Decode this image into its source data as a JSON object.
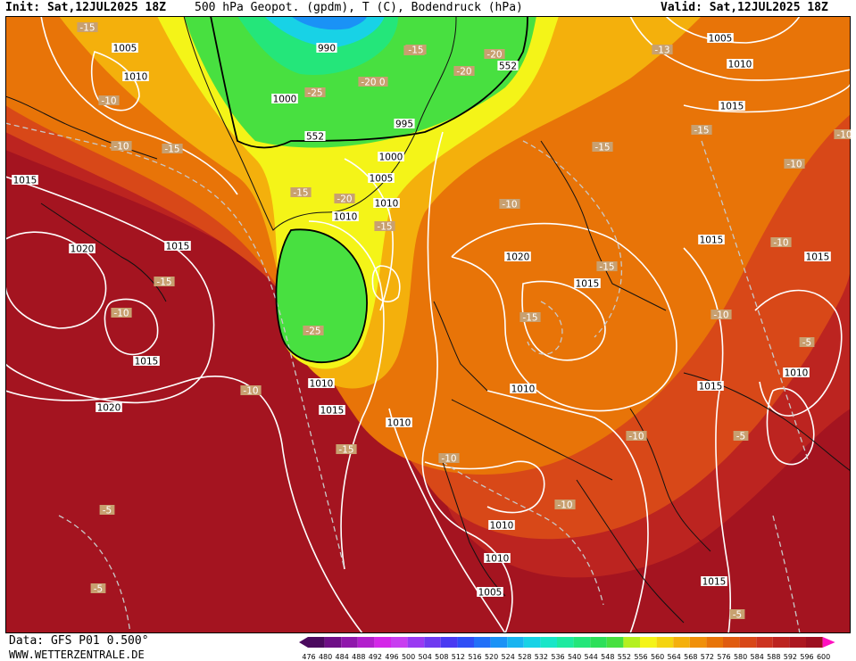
{
  "header": {
    "init": "Init: Sat,12JUL2025 18Z",
    "title": "500 hPa Geopot. (gpdm), T (C), Bodendruck (hPa)",
    "valid": "Valid: Sat,12JUL2025 18Z"
  },
  "footer": {
    "data_source": "Data: GFS P01 0.500°",
    "website": "WWW.WETTERZENTRALE.DE"
  },
  "legend": {
    "levels": [
      "476",
      "480",
      "484",
      "488",
      "492",
      "496",
      "500",
      "504",
      "508",
      "512",
      "516",
      "520",
      "524",
      "528",
      "532",
      "536",
      "540",
      "544",
      "548",
      "552",
      "556",
      "560",
      "564",
      "568",
      "572",
      "576",
      "580",
      "584",
      "588",
      "592",
      "596",
      "600"
    ],
    "colors": [
      "#4b0a5e",
      "#6e0f86",
      "#8f17ab",
      "#b21fcc",
      "#d426e8",
      "#c83ef0",
      "#9a3af2",
      "#6f3af0",
      "#4a3af2",
      "#2f4ef6",
      "#2270f8",
      "#1a92f6",
      "#19b4f0",
      "#18d2e6",
      "#1ae6c8",
      "#1eeaa0",
      "#24e67a",
      "#2ee05a",
      "#48e040",
      "#b4f020",
      "#f4f418",
      "#f4d410",
      "#f4b00c",
      "#f0900a",
      "#e87408",
      "#e05c10",
      "#d84818",
      "#cc3420",
      "#bc2420",
      "#ac1820",
      "#9c1020",
      "#ff10c0"
    ]
  },
  "pressure_labels": [
    {
      "v": "1005"
    },
    {
      "v": "1010"
    },
    {
      "v": "1015"
    },
    {
      "v": "1020"
    },
    {
      "v": "1015"
    },
    {
      "v": "1015"
    },
    {
      "v": "1020"
    },
    {
      "v": "990"
    },
    {
      "v": "1000"
    },
    {
      "v": "995"
    },
    {
      "v": "1000"
    },
    {
      "v": "1005"
    },
    {
      "v": "1010"
    },
    {
      "v": "1010"
    },
    {
      "v": "1010"
    },
    {
      "v": "1015"
    },
    {
      "v": "1010"
    },
    {
      "v": "1020"
    },
    {
      "v": "1015"
    },
    {
      "v": "1010"
    },
    {
      "v": "1015"
    },
    {
      "v": "1010"
    },
    {
      "v": "1010"
    },
    {
      "v": "1005"
    },
    {
      "v": "1015"
    },
    {
      "v": "1015"
    },
    {
      "v": "1010"
    },
    {
      "v": "1015"
    },
    {
      "v": "1020"
    },
    {
      "v": "1005"
    },
    {
      "v": "1010"
    },
    {
      "v": "1015"
    }
  ],
  "temp_labels": [
    {
      "v": "-15"
    },
    {
      "v": "-10"
    },
    {
      "v": "-10"
    },
    {
      "v": "-15"
    },
    {
      "v": "-15"
    },
    {
      "v": "-10"
    },
    {
      "v": "-25"
    },
    {
      "v": "-20"
    },
    {
      "v": "-15"
    },
    {
      "v": "-20"
    },
    {
      "v": "-20"
    },
    {
      "v": "-15"
    },
    {
      "v": "-15"
    },
    {
      "v": "-20"
    },
    {
      "v": "-15"
    },
    {
      "v": "-25"
    },
    {
      "v": "-10"
    },
    {
      "v": "-15"
    },
    {
      "v": "-10"
    },
    {
      "v": "-10"
    },
    {
      "v": "-15"
    },
    {
      "v": "-15"
    },
    {
      "v": "-15"
    },
    {
      "v": "-10"
    },
    {
      "v": "-10"
    },
    {
      "v": "-10"
    },
    {
      "v": "-10"
    },
    {
      "v": "-5"
    },
    {
      "v": "-5"
    },
    {
      "v": "-10"
    },
    {
      "v": "-5"
    },
    {
      "v": "-5"
    },
    {
      "v": "-5"
    },
    {
      "v": "-13"
    },
    {
      "v": "-10"
    },
    {
      "v": "-15"
    },
    {
      "v": "-10"
    }
  ],
  "geopot_labels": [
    {
      "v": "552"
    },
    {
      "v": "552"
    }
  ]
}
